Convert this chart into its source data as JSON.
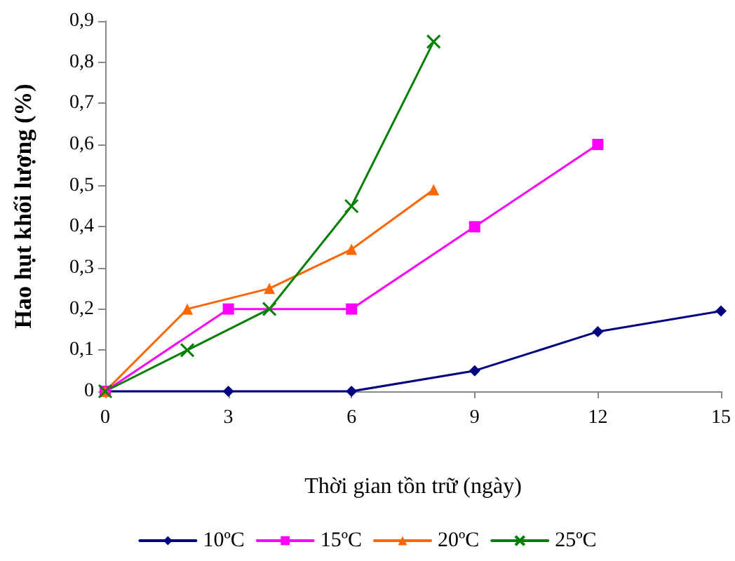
{
  "chart_data": {
    "type": "line",
    "xlabel": "Thời gian tồn trữ (ngày)",
    "ylabel": "Hao hụt khối lượng (%)",
    "xlim": [
      0,
      15
    ],
    "xticks": [
      0,
      3,
      6,
      9,
      12,
      15
    ],
    "ylim": [
      0,
      0.9
    ],
    "yticks": [
      0,
      {
        "value": 0.1,
        "label": "0,1"
      },
      {
        "value": 0.2,
        "label": "0,2"
      },
      {
        "value": 0.3,
        "label": "0,3"
      },
      {
        "value": 0.4,
        "label": "0,4"
      },
      {
        "value": 0.5,
        "label": "0,5"
      },
      {
        "value": 0.6,
        "label": "0,6"
      },
      {
        "value": 0.7,
        "label": "0,7"
      },
      {
        "value": 0.8,
        "label": "0,8"
      },
      {
        "value": 0.9,
        "label": "0,9"
      }
    ],
    "grid": false,
    "legend": "bottom",
    "series": [
      {
        "name": "10ºC",
        "color": "#000080",
        "marker": "diamond",
        "x": [
          0,
          3,
          6,
          9,
          12,
          15
        ],
        "values": [
          0,
          0,
          0,
          0.05,
          0.145,
          0.195
        ]
      },
      {
        "name": "15ºC",
        "color": "#ff00ff",
        "marker": "square",
        "x": [
          0,
          3,
          6,
          9,
          12
        ],
        "values": [
          0,
          0.2,
          0.2,
          0.4,
          0.6
        ]
      },
      {
        "name": "20ºC",
        "color": "#ff6600",
        "marker": "triangle",
        "x": [
          0,
          2,
          4,
          6,
          8
        ],
        "values": [
          0,
          0.2,
          0.25,
          0.345,
          0.49
        ]
      },
      {
        "name": "25ºC",
        "color": "#008000",
        "marker": "cross",
        "x": [
          0,
          2,
          4,
          6,
          8
        ],
        "values": [
          0,
          0.1,
          0.2,
          0.45,
          0.85
        ]
      }
    ]
  }
}
